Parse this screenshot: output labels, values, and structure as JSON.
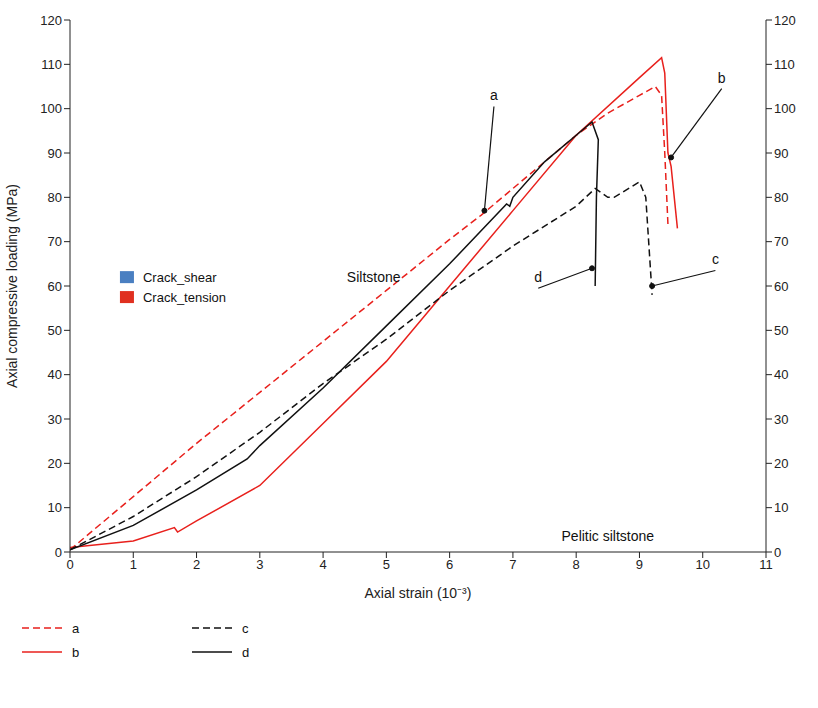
{
  "chart_data": {
    "type": "line",
    "x_label": "Axial strain (10⁻³)",
    "y_label": "Axial compressive loading (MPa)",
    "xlim": [
      0,
      11
    ],
    "xticks": [
      0,
      1,
      2,
      3,
      4,
      5,
      6,
      7,
      8,
      9,
      10,
      11
    ],
    "ylim": [
      0,
      120
    ],
    "yticks": [
      0,
      10,
      20,
      30,
      40,
      50,
      60,
      70,
      80,
      90,
      100,
      110,
      120
    ],
    "legend": "bottom",
    "series": [
      {
        "name": "a",
        "color": "#e8201c",
        "line_style": "dashed",
        "x": [
          0,
          1,
          2,
          3,
          4,
          5,
          6,
          6.5,
          7,
          8,
          8.5,
          9,
          9.25,
          9.35,
          9.4,
          9.45
        ],
        "values": [
          0.5,
          12.5,
          24.5,
          36,
          47.5,
          59,
          70.5,
          76,
          82,
          94,
          99,
          103,
          105,
          103,
          90,
          74
        ]
      },
      {
        "name": "b",
        "color": "#e8201c",
        "line_style": "solid",
        "x": [
          0,
          1,
          1.65,
          1.7,
          2,
          3,
          4,
          5,
          6,
          7,
          8,
          9,
          9.35,
          9.4,
          9.45,
          9.5,
          9.6
        ],
        "values": [
          1,
          2.5,
          5.5,
          4.5,
          7,
          15,
          29,
          43,
          60,
          77,
          94,
          107,
          111.5,
          108,
          90,
          87,
          73
        ]
      },
      {
        "name": "c",
        "color": "#111111",
        "line_style": "dashed",
        "x": [
          0,
          1,
          2,
          3,
          4,
          5,
          6,
          7,
          8,
          8.3,
          8.5,
          8.6,
          9,
          9.1,
          9.2
        ],
        "values": [
          0.5,
          8,
          17,
          27,
          38,
          48,
          59,
          69,
          78,
          82,
          80,
          80,
          83.5,
          80,
          58
        ]
      },
      {
        "name": "d",
        "color": "#111111",
        "line_style": "solid",
        "x": [
          0,
          1,
          2,
          2.8,
          3,
          4,
          5,
          6,
          6.9,
          6.95,
          7,
          7.5,
          8,
          8.25,
          8.35,
          8.32,
          8.3
        ],
        "values": [
          0.5,
          6,
          14,
          21,
          24,
          37,
          51,
          65,
          78.5,
          78,
          80,
          88,
          94,
          97,
          93,
          80,
          60
        ]
      }
    ],
    "annotations": [
      {
        "text": "a",
        "x": 6.7,
        "y": 103,
        "arrow_to": [
          6.55,
          77
        ]
      },
      {
        "text": "b",
        "x": 10.3,
        "y": 107,
        "arrow_to": [
          9.5,
          89
        ]
      },
      {
        "text": "c",
        "x": 10.2,
        "y": 66,
        "arrow_to": [
          9.2,
          60
        ]
      },
      {
        "text": "d",
        "x": 7.4,
        "y": 62,
        "arrow_to": [
          8.25,
          64
        ]
      },
      {
        "text": "Siltstone",
        "x": 4.8,
        "y": 62
      },
      {
        "text": "Pelitic siltstone",
        "x": 8.5,
        "y": 3.5
      }
    ],
    "inset_legend": [
      {
        "name": "Crack_shear",
        "color": "#4a7fc1"
      },
      {
        "name": "Crack_tension",
        "color": "#e03020"
      }
    ]
  }
}
